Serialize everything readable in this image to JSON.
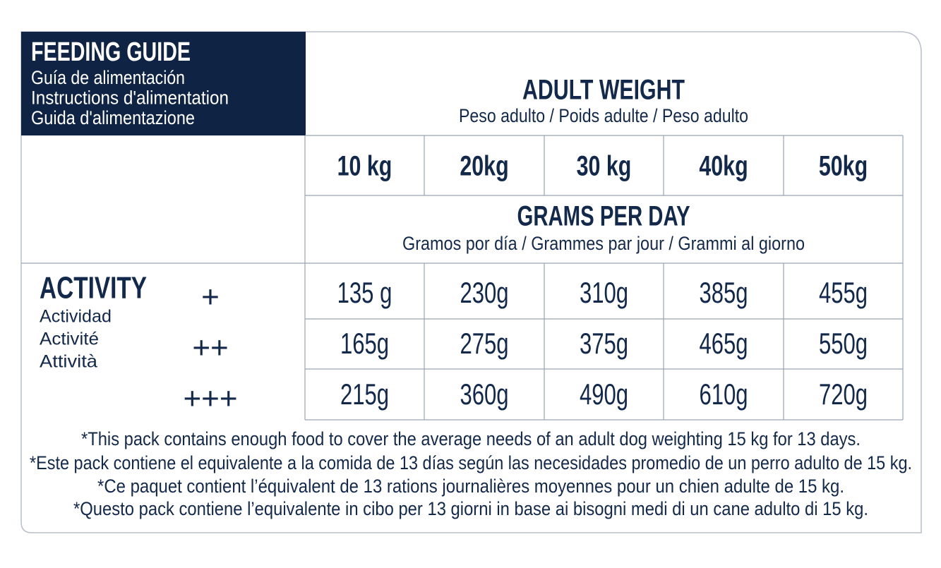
{
  "header": {
    "title": "FEEDING GUIDE",
    "subtitles": [
      "Guía de alimentación",
      "Instructions d'alimentation",
      "Guida d'alimentazione"
    ]
  },
  "weight_header": {
    "title": "ADULT WEIGHT",
    "subtitle": "Peso adulto / Poids adulte / Peso adulto"
  },
  "weights": [
    "10 kg",
    "20kg",
    "30 kg",
    "40kg",
    "50kg"
  ],
  "grams_header": {
    "title": "GRAMS PER DAY",
    "subtitle": "Gramos por día / Grammes par jour / Grammi al giorno"
  },
  "activity": {
    "title": "ACTIVITY",
    "translations": [
      "Actividad",
      "Activité",
      "Attività"
    ]
  },
  "rows": [
    {
      "level": "+",
      "values": [
        "135 g",
        "230g",
        "310g",
        "385g",
        "455g"
      ]
    },
    {
      "level": "++",
      "values": [
        "165g",
        "275g",
        "375g",
        "465g",
        "550g"
      ]
    },
    {
      "level": "+++",
      "values": [
        "215g",
        "360g",
        "490g",
        "610g",
        "720g"
      ]
    }
  ],
  "footnotes": [
    "*This pack contains enough food to cover the average needs of an adult dog weighting 15 kg for 13 days.",
    "*Este pack contiene el equivalente a la comida de 13 días según las necesidades promedio de un perro adulto de 15 kg.",
    "*Ce paquet contient l’équivalent de 13 rations journalières moyennes pour un chien adulte de 15 kg.",
    "*Questo pack contiene l’equivalente in cibo per 13 giorni in base ai bisogni medi di un cane adulto di 15 kg."
  ]
}
